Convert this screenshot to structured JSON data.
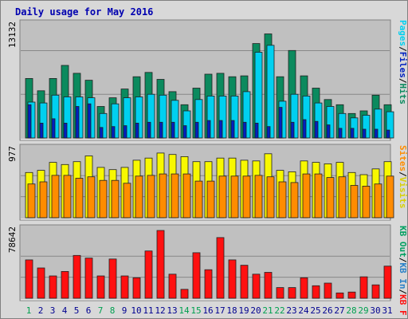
{
  "chart_data": {
    "type": "bar",
    "title": "Daily usage for May 2016",
    "categories": [
      "1",
      "2",
      "3",
      "4",
      "5",
      "6",
      "7",
      "8",
      "9",
      "10",
      "11",
      "12",
      "13",
      "14",
      "15",
      "16",
      "17",
      "18",
      "19",
      "20",
      "21",
      "22",
      "23",
      "24",
      "25",
      "26",
      "27",
      "28",
      "29",
      "30",
      "31"
    ],
    "weekend_days": [
      "1",
      "7",
      "8",
      "14",
      "15",
      "21",
      "22",
      "28",
      "29"
    ],
    "panels": [
      {
        "key": "hits_files_pages",
        "axis_max_label": "13132",
        "ymax": 13132,
        "series": [
          {
            "name": "Hits",
            "color": "#0b8a5e",
            "values": [
              6800,
              5400,
              6800,
              8300,
              7400,
              6600,
              3600,
              4600,
              5600,
              7000,
              7500,
              6700,
              5300,
              3800,
              5700,
              7300,
              7400,
              7000,
              7100,
              10800,
              11900,
              7000,
              10000,
              7100,
              5700,
              4400,
              3800,
              2800,
              3100,
              4900,
              3800
            ]
          },
          {
            "name": "Files",
            "color": "#00d0f0",
            "values": [
              4100,
              4000,
              4900,
              4700,
              4700,
              4600,
              2800,
              3900,
              4600,
              4700,
              5000,
              4900,
              4300,
              3100,
              4400,
              4800,
              4800,
              4800,
              5300,
              9800,
              10600,
              4200,
              5000,
              4800,
              4000,
              3600,
              2800,
              2300,
              2600,
              3300,
              3000
            ]
          },
          {
            "name": "Pages",
            "color": "#0020c0",
            "values": [
              3800,
              1700,
              2200,
              1700,
              3600,
              3900,
              1200,
              1300,
              1400,
              1700,
              1800,
              1800,
              1800,
              1400,
              1800,
              2000,
              2000,
              2000,
              1800,
              1700,
              1300,
              3500,
              1800,
              2100,
              1900,
              1500,
              1100,
              1100,
              1000,
              1000,
              900
            ]
          }
        ]
      },
      {
        "key": "visits_sites",
        "axis_max_label": "977",
        "ymax": 977,
        "series": [
          {
            "name": "Visits",
            "color": "#f8f800",
            "values": [
              630,
              660,
              770,
              740,
              780,
              860,
              700,
              670,
              700,
              800,
              830,
              900,
              880,
              850,
              780,
              780,
              830,
              830,
              800,
              790,
              890,
              660,
              640,
              790,
              770,
              750,
              770,
              630,
              600,
              680,
              780
            ]
          },
          {
            "name": "Sites",
            "color": "#ff8c00",
            "values": [
              470,
              500,
              590,
              590,
              550,
              570,
              520,
              520,
              480,
              580,
              590,
              610,
              610,
              610,
              510,
              510,
              580,
              580,
              580,
              590,
              570,
              500,
              490,
              610,
              610,
              560,
              570,
              450,
              440,
              470,
              580
            ]
          }
        ]
      },
      {
        "key": "kbf_kbin_kbout",
        "axis_max_label": "78642",
        "ymax": 78642,
        "series": [
          {
            "name": "KB F",
            "color": "#ff1010",
            "values": [
              43000,
              34000,
              25000,
              30000,
              48000,
              45000,
              25000,
              44000,
              25000,
              23000,
              53000,
              76000,
              27000,
              10000,
              51000,
              32000,
              68000,
              43000,
              37000,
              27000,
              29000,
              12000,
              12000,
              23000,
              14000,
              17000,
              6000,
              7000,
              24000,
              15000,
              36000
            ]
          },
          {
            "name": "KB In",
            "color": "#2880c8",
            "values": []
          },
          {
            "name": "KB Out",
            "color": "#00a060",
            "values": []
          }
        ]
      }
    ],
    "grid": true
  },
  "legend": {
    "hits": "Hits",
    "files": "Files",
    "pages": "Pages",
    "visits": "Visits",
    "sites": "Sites",
    "kbout": "KB Out",
    "kbin": "KB In",
    "kbf": "KB F",
    "sep": "/"
  },
  "colors": {
    "title": "#0000b0",
    "panel_bg": "#c0c0c0",
    "axis_text": "#000000",
    "weekday_label": "#000090",
    "weekend_label": "#00a050"
  }
}
